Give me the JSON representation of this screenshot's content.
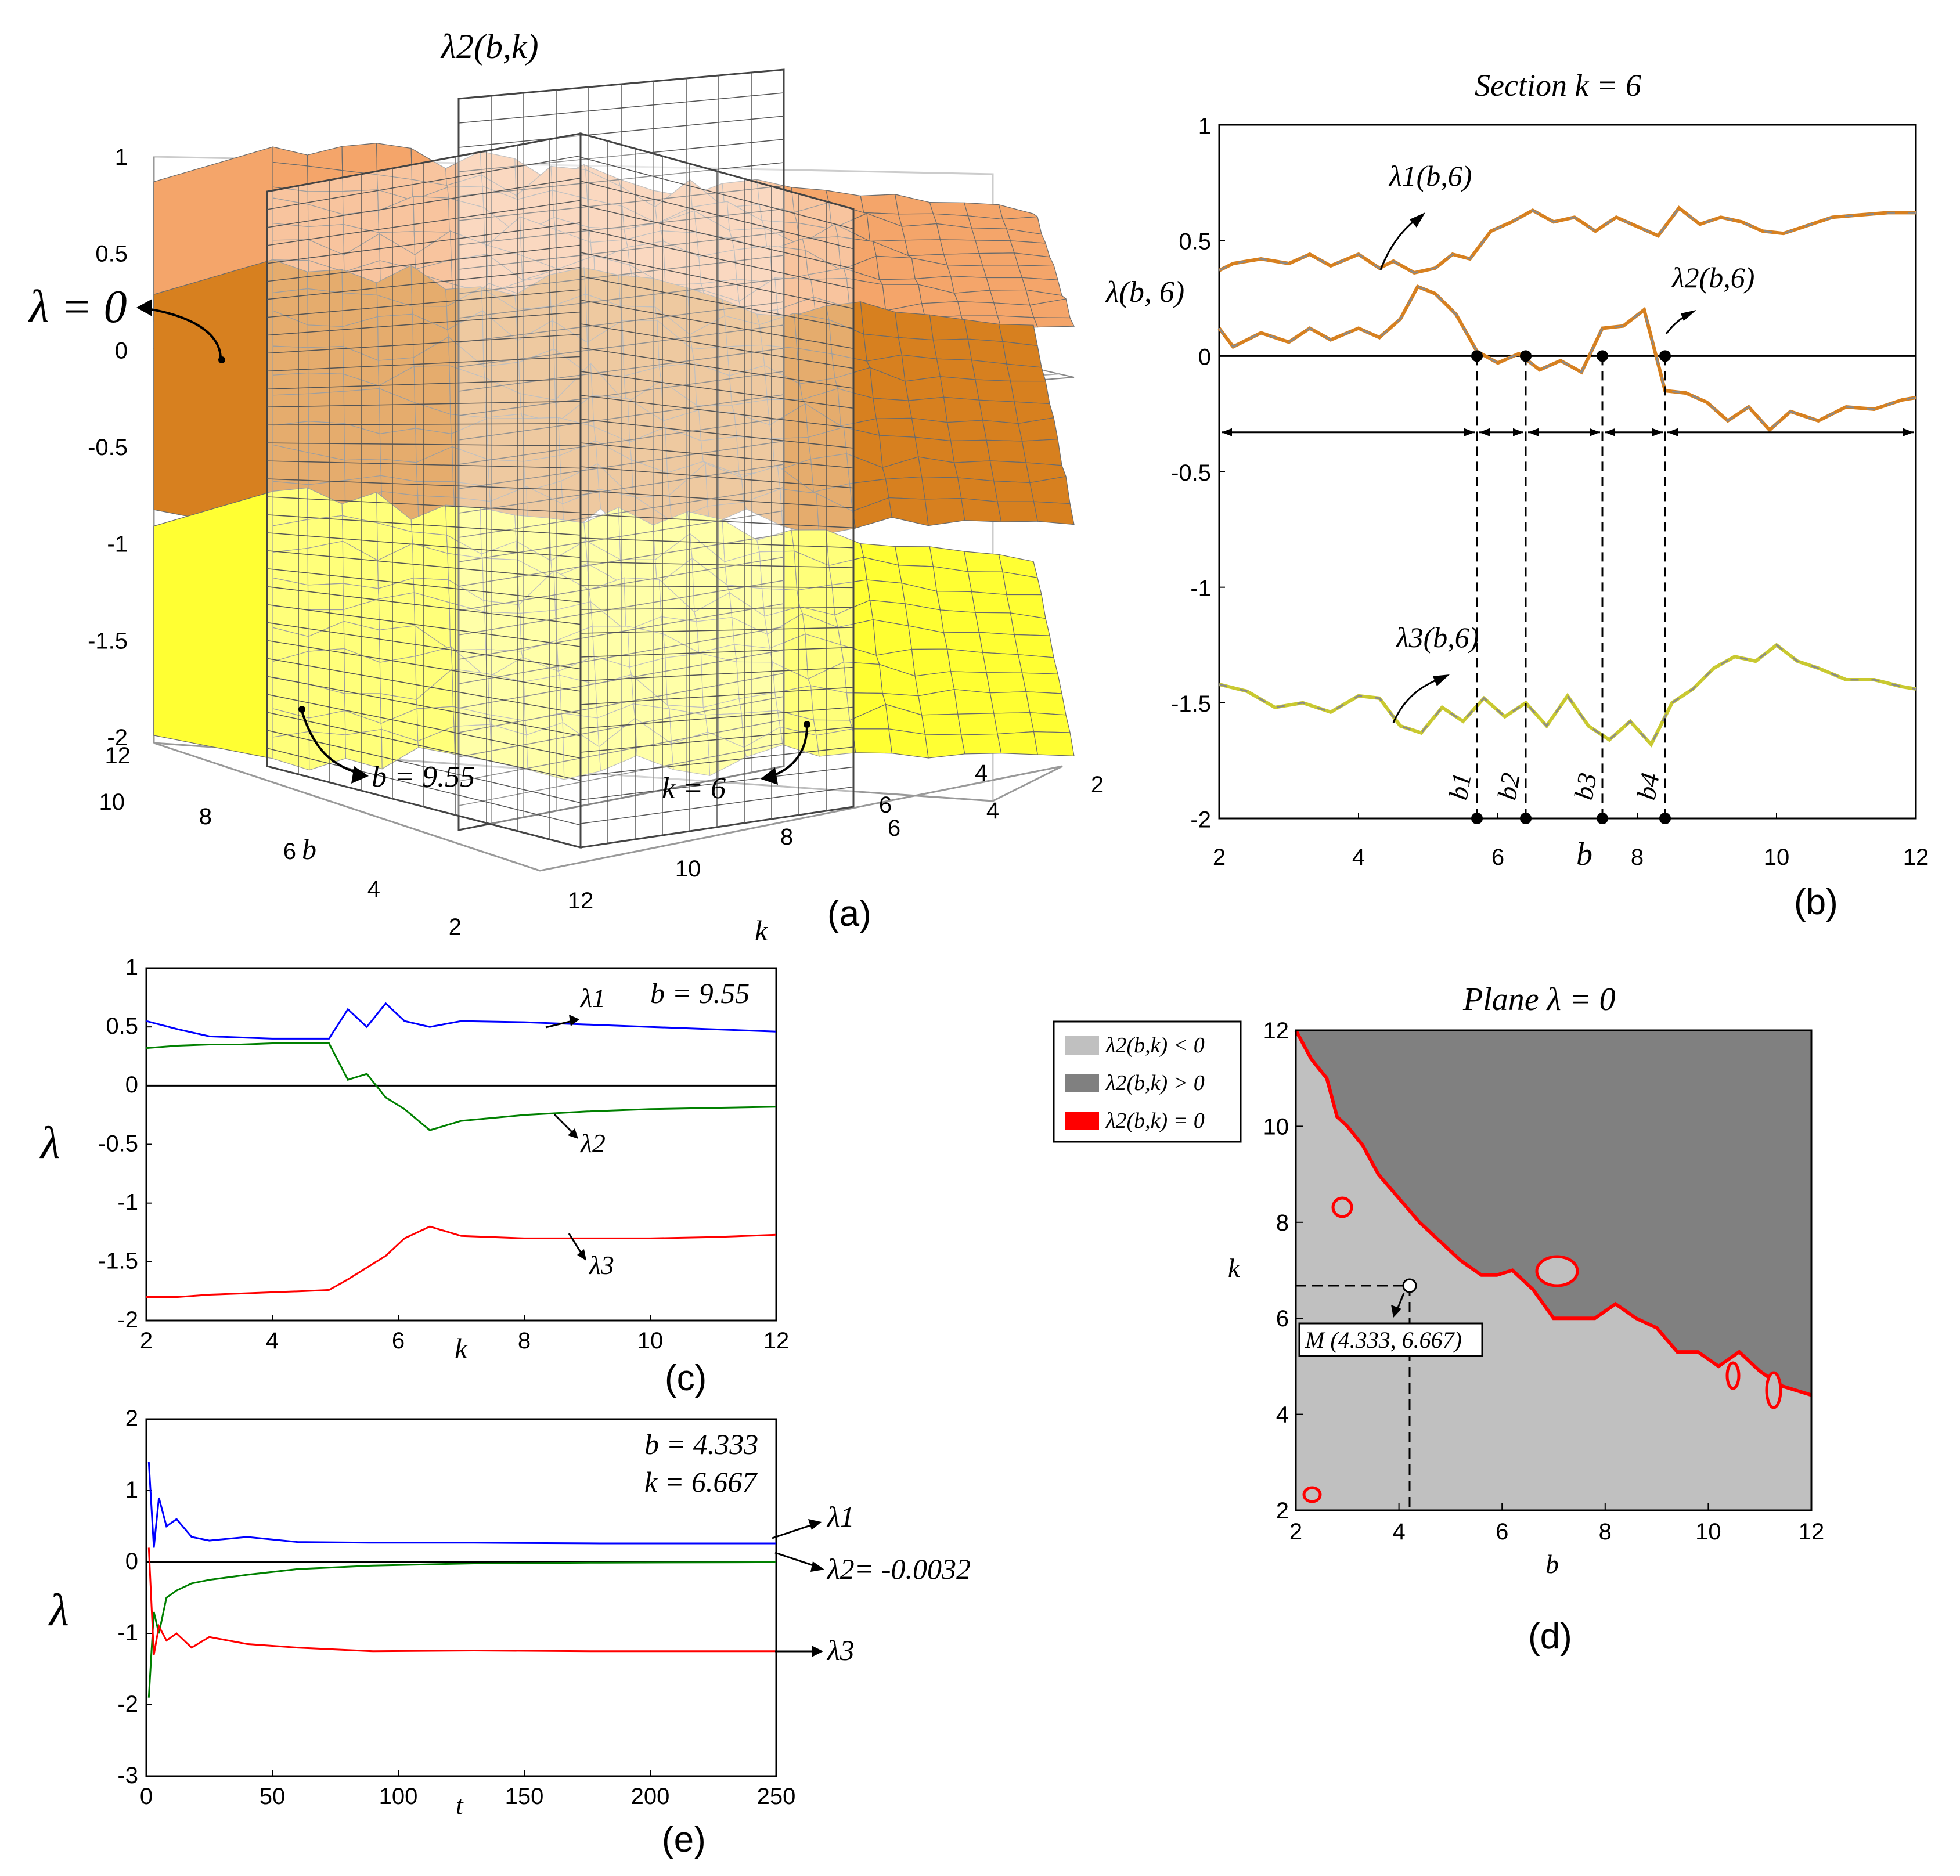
{
  "colors": {
    "lambda1_surface": "#f4a56a",
    "lambda2_surface": "#d7801f",
    "lambda3_surface": "#ffff33",
    "series_blue": "#0000ff",
    "series_green": "#008000",
    "series_red": "#ff0000",
    "neg_region": "#c0c0c0",
    "pos_region": "#808080",
    "zero_contour": "#ff0000"
  },
  "chart_data": [
    {
      "id": "a",
      "type": "area",
      "panel_label": "(a)",
      "title": "λ2(b,k)",
      "z_ticks": [
        "1",
        "0.5",
        "0",
        "-0.5",
        "-1",
        "-1.5",
        "-2"
      ],
      "b_ticks": [
        "12",
        "10",
        "8",
        "6",
        "4",
        "2"
      ],
      "k_ticks": [
        "12",
        "10",
        "8",
        "6",
        "4",
        "2"
      ],
      "xlabel": "k",
      "ylabel": "b",
      "annotations": [
        "λ = 0",
        "b = 9.55",
        "k = 6"
      ],
      "surfaces": [
        {
          "name": "λ1",
          "level_range": [
            0.3,
            0.7
          ]
        },
        {
          "name": "λ2",
          "level_range": [
            -0.7,
            0.1
          ]
        },
        {
          "name": "λ3",
          "level_range": [
            -1.9,
            -1.1
          ]
        }
      ]
    },
    {
      "id": "b",
      "type": "line",
      "panel_label": "(b)",
      "title": "Section k = 6",
      "xlabel": "b",
      "ylabel": "λ(b, 6)",
      "xlim": [
        2,
        12
      ],
      "ylim": [
        -2,
        1
      ],
      "x_ticks": [
        "2",
        "4",
        "6",
        "8",
        "10",
        "12"
      ],
      "y_ticks": [
        "1",
        "0.5",
        "0",
        "-0.5",
        "-1",
        "-1.5",
        "-2"
      ],
      "series": [
        {
          "name": "λ1(b,6)",
          "x": [
            2,
            2.2,
            2.6,
            3.0,
            3.3,
            3.6,
            4.0,
            4.3,
            4.5,
            4.8,
            5.1,
            5.35,
            5.6,
            5.9,
            6.2,
            6.5,
            6.8,
            7.1,
            7.4,
            7.7,
            8.0,
            8.3,
            8.6,
            8.9,
            9.2,
            9.5,
            9.8,
            10.1,
            10.4,
            10.8,
            11.2,
            11.6,
            12
          ],
          "values": [
            0.37,
            0.4,
            0.42,
            0.4,
            0.44,
            0.39,
            0.44,
            0.38,
            0.41,
            0.36,
            0.38,
            0.44,
            0.42,
            0.54,
            0.58,
            0.63,
            0.58,
            0.6,
            0.54,
            0.6,
            0.56,
            0.52,
            0.64,
            0.57,
            0.6,
            0.58,
            0.54,
            0.53,
            0.56,
            0.6,
            0.61,
            0.62,
            0.62
          ]
        },
        {
          "name": "λ2(b,6)",
          "x": [
            2,
            2.2,
            2.6,
            3.0,
            3.3,
            3.6,
            4.0,
            4.3,
            4.6,
            4.85,
            5.1,
            5.4,
            5.7,
            6.0,
            6.3,
            6.6,
            6.9,
            7.2,
            7.5,
            7.8,
            8.1,
            8.4,
            8.7,
            9.0,
            9.3,
            9.6,
            9.9,
            10.2,
            10.6,
            11.0,
            11.4,
            11.8,
            12
          ],
          "values": [
            0.12,
            0.04,
            0.1,
            0.06,
            0.12,
            0.07,
            0.12,
            0.08,
            0.16,
            0.3,
            0.27,
            0.18,
            0.02,
            -0.03,
            0.01,
            -0.06,
            -0.02,
            -0.07,
            0.12,
            0.13,
            0.2,
            -0.15,
            -0.16,
            -0.2,
            -0.28,
            -0.22,
            -0.32,
            -0.24,
            -0.28,
            -0.22,
            -0.23,
            -0.19,
            -0.18
          ]
        },
        {
          "name": "λ3(b,6)",
          "x": [
            2,
            2.4,
            2.8,
            3.2,
            3.6,
            4.0,
            4.3,
            4.6,
            4.9,
            5.2,
            5.5,
            5.8,
            6.1,
            6.4,
            6.7,
            7.0,
            7.3,
            7.6,
            7.9,
            8.2,
            8.5,
            8.8,
            9.1,
            9.4,
            9.7,
            10.0,
            10.3,
            10.6,
            11.0,
            11.4,
            11.8,
            12
          ],
          "values": [
            -1.42,
            -1.45,
            -1.52,
            -1.5,
            -1.54,
            -1.47,
            -1.48,
            -1.6,
            -1.63,
            -1.52,
            -1.58,
            -1.48,
            -1.56,
            -1.5,
            -1.6,
            -1.47,
            -1.6,
            -1.66,
            -1.58,
            -1.68,
            -1.5,
            -1.44,
            -1.35,
            -1.3,
            -1.32,
            -1.25,
            -1.32,
            -1.35,
            -1.4,
            -1.4,
            -1.43,
            -1.44
          ]
        }
      ],
      "markers": [
        "b1",
        "b2",
        "b3",
        "b4"
      ],
      "marker_x": [
        5.7,
        6.4,
        7.5,
        8.4
      ]
    },
    {
      "id": "c",
      "type": "line",
      "panel_label": "(c)",
      "annotation": "b = 9.55",
      "xlabel": "k",
      "ylabel": "λ",
      "xlim": [
        2,
        12
      ],
      "ylim": [
        -2,
        1
      ],
      "x_ticks": [
        "2",
        "4",
        "6",
        "8",
        "10",
        "12"
      ],
      "y_ticks": [
        "1",
        "0.5",
        "0",
        "-0.5",
        "-1",
        "-1.5",
        "-2"
      ],
      "series": [
        {
          "name": "λ1",
          "x": [
            2,
            2.5,
            3,
            3.5,
            4,
            4.5,
            4.9,
            5.2,
            5.5,
            5.8,
            6.1,
            6.5,
            7,
            8,
            9,
            10,
            11,
            12
          ],
          "values": [
            0.55,
            0.48,
            0.42,
            0.41,
            0.4,
            0.4,
            0.4,
            0.65,
            0.5,
            0.7,
            0.55,
            0.5,
            0.55,
            0.54,
            0.52,
            0.5,
            0.48,
            0.46
          ]
        },
        {
          "name": "λ2",
          "x": [
            2,
            2.5,
            3,
            3.5,
            4,
            4.5,
            4.9,
            5.2,
            5.5,
            5.8,
            6.1,
            6.5,
            7,
            8,
            9,
            10,
            11,
            12
          ],
          "values": [
            0.32,
            0.34,
            0.35,
            0.35,
            0.36,
            0.36,
            0.36,
            0.05,
            0.1,
            -0.1,
            -0.2,
            -0.38,
            -0.3,
            -0.25,
            -0.22,
            -0.2,
            -0.19,
            -0.18
          ]
        },
        {
          "name": "λ3",
          "x": [
            2,
            2.5,
            3,
            3.5,
            4,
            4.5,
            4.9,
            5.2,
            5.5,
            5.8,
            6.1,
            6.5,
            7,
            8,
            9,
            10,
            11,
            12
          ],
          "values": [
            -1.8,
            -1.8,
            -1.78,
            -1.77,
            -1.76,
            -1.75,
            -1.74,
            -1.65,
            -1.55,
            -1.45,
            -1.3,
            -1.2,
            -1.28,
            -1.3,
            -1.3,
            -1.3,
            -1.29,
            -1.27
          ]
        }
      ],
      "series_labels": [
        "λ1",
        "λ2",
        "λ3"
      ]
    },
    {
      "id": "d",
      "type": "heatmap",
      "panel_label": "(d)",
      "title": "Plane λ = 0",
      "xlabel": "b",
      "ylabel": "k",
      "xlim": [
        2,
        12
      ],
      "ylim": [
        2,
        12
      ],
      "x_ticks": [
        "2",
        "4",
        "6",
        "8",
        "10",
        "12"
      ],
      "y_ticks": [
        "12",
        "10",
        "8",
        "6",
        "4",
        "2"
      ],
      "legend": [
        "λ2(b,k) < 0",
        "λ2(b,k) > 0",
        "λ2(b,k) = 0"
      ],
      "boundary_b": [
        2,
        2.3,
        2.6,
        2.8,
        3.0,
        3.3,
        3.6,
        4.0,
        4.4,
        4.8,
        5.2,
        5.6,
        5.9,
        6.2,
        6.6,
        7.0,
        7.4,
        7.8,
        8.2,
        8.6,
        9.0,
        9.4,
        9.8,
        10.2,
        10.6,
        11.0,
        11.4,
        12
      ],
      "boundary_k": [
        12,
        11.4,
        11.0,
        10.2,
        10.0,
        9.6,
        9.0,
        8.5,
        8.0,
        7.6,
        7.2,
        6.9,
        6.9,
        7.0,
        6.6,
        6.0,
        6.0,
        6.0,
        6.3,
        6.0,
        5.8,
        5.3,
        5.3,
        5.0,
        5.3,
        4.9,
        4.6,
        4.4
      ],
      "point_label": "M (4.333, 6.667)",
      "point": [
        4.333,
        6.667
      ]
    },
    {
      "id": "e",
      "type": "line",
      "panel_label": "(e)",
      "annotations": [
        "b = 4.333",
        "k = 6.667"
      ],
      "xlabel": "t",
      "ylabel": "λ",
      "xlim": [
        0,
        250
      ],
      "ylim": [
        -3,
        2
      ],
      "x_ticks": [
        "0",
        "50",
        "100",
        "150",
        "200",
        "250"
      ],
      "y_ticks": [
        "2",
        "1",
        "0",
        "-1",
        "-2",
        "-3"
      ],
      "series": [
        {
          "name": "λ1",
          "x": [
            1,
            3,
            5,
            8,
            12,
            18,
            25,
            40,
            60,
            90,
            130,
            180,
            250
          ],
          "values": [
            1.4,
            0.2,
            0.9,
            0.5,
            0.6,
            0.35,
            0.3,
            0.35,
            0.28,
            0.27,
            0.27,
            0.26,
            0.26
          ]
        },
        {
          "name": "λ2",
          "x": [
            1,
            3,
            5,
            8,
            12,
            18,
            25,
            40,
            60,
            90,
            130,
            180,
            250
          ],
          "values": [
            -1.9,
            -0.7,
            -1.0,
            -0.5,
            -0.4,
            -0.3,
            -0.25,
            -0.18,
            -0.1,
            -0.05,
            -0.02,
            -0.01,
            -0.0032
          ]
        },
        {
          "name": "λ3",
          "x": [
            1,
            3,
            5,
            8,
            12,
            18,
            25,
            40,
            60,
            90,
            130,
            180,
            250
          ],
          "values": [
            0.2,
            -1.3,
            -0.9,
            -1.1,
            -1.0,
            -1.2,
            -1.05,
            -1.15,
            -1.2,
            -1.25,
            -1.24,
            -1.25,
            -1.25
          ]
        }
      ],
      "series_labels": [
        "λ1",
        "λ2= -0.0032",
        "λ3"
      ]
    }
  ]
}
